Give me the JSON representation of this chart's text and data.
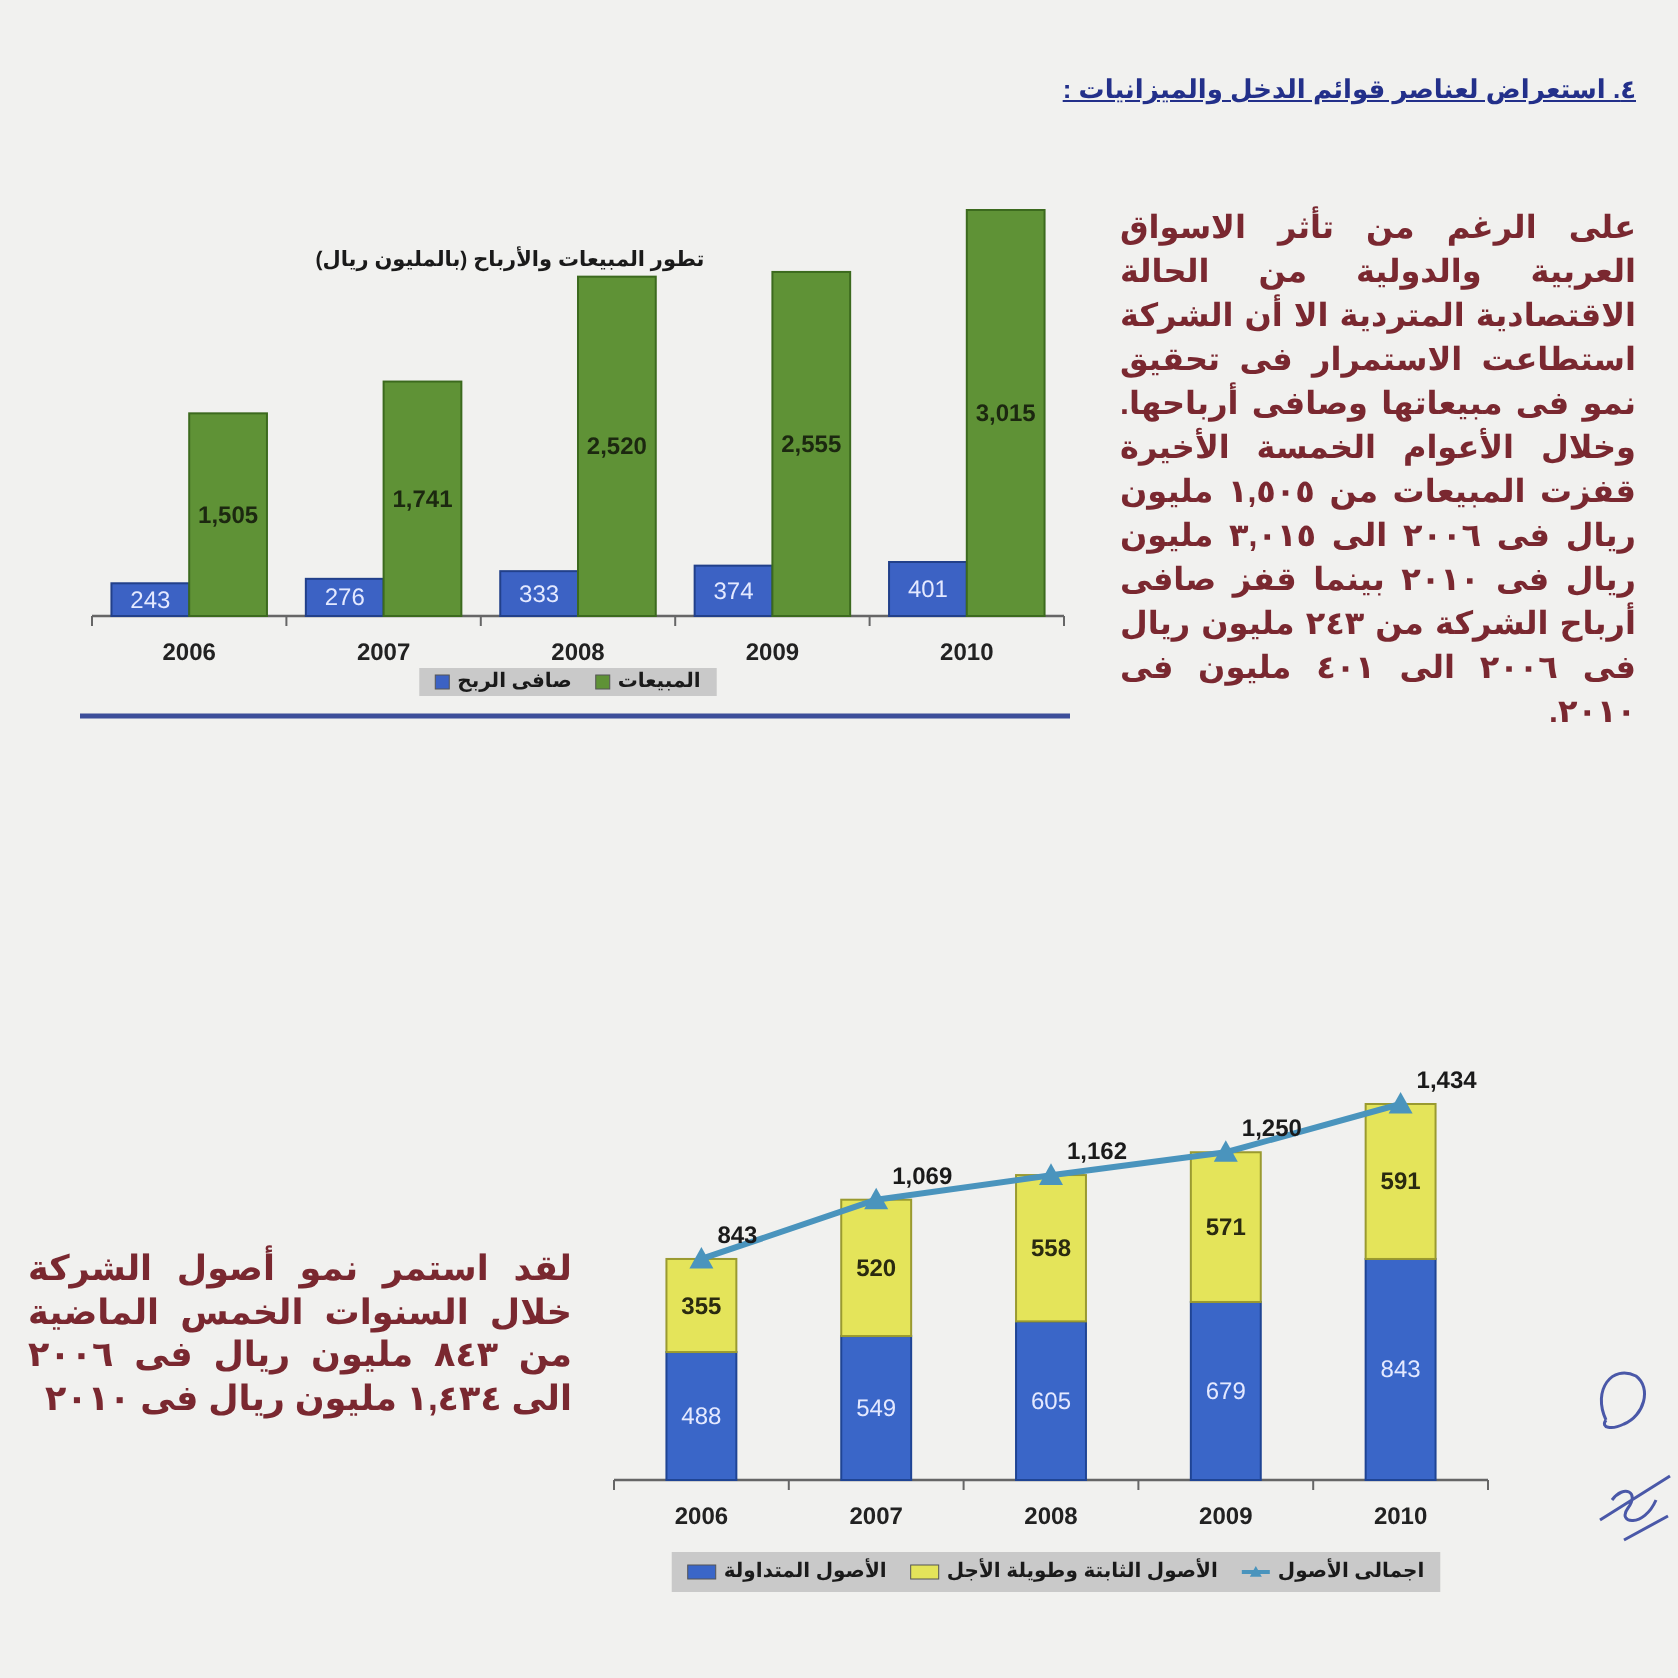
{
  "chart_data": [
    {
      "type": "bar",
      "title": "تطور المبيعات والأرباح (بالمليون ريال)",
      "categories": [
        "2006",
        "2007",
        "2008",
        "2009",
        "2010"
      ],
      "series": [
        {
          "name": "صافى الربح",
          "color": "#3c62c4",
          "values": [
            243,
            276,
            333,
            374,
            401
          ],
          "value_labels": [
            "243",
            "276",
            "333",
            "374",
            "401"
          ]
        },
        {
          "name": "المبيعات",
          "color": "#5f9236",
          "values": [
            1505,
            1741,
            2520,
            2555,
            3015
          ],
          "value_labels": [
            "1,505",
            "1,741",
            "2,520",
            "2,555",
            "3,015"
          ]
        }
      ],
      "legend": "bottom",
      "annotations": [
        "٤. استعراض لعناصر قوائم الدخل والميزانيات :",
        "على الرغم من تأثر الاسواق العربية والدولية من الحالة الاقتصادية المتردية الا أن الشركة استطاعت الاستمرار فى تحقيق نمو فى مبيعاتها وصافى أرباحها. وخلال الأعوام الخمسة الأخيرة قفزت المبيعات من ١,٥٠٥ مليون ريال فى ٢٠٠٦ الى ٣,٠١٥ مليون ريال فى ٢٠١٠ بينما قفز صافى أرباح الشركة من ٢٤٣ مليون ريال فى ٢٠٠٦ الى ٤٠١ مليون فى ٢٠١٠."
      ]
    },
    {
      "type": "bar",
      "stacked": true,
      "categories": [
        "2006",
        "2007",
        "2008",
        "2009",
        "2010"
      ],
      "series": [
        {
          "name": "الأصول المتداولة",
          "color": "#3a66c8",
          "values": [
            488,
            549,
            605,
            679,
            843
          ],
          "value_labels": [
            "488",
            "549",
            "605",
            "679",
            "843"
          ]
        },
        {
          "name": "الأصول الثابتة وطويلة الأجل",
          "color": "#e4e45a",
          "values": [
            355,
            520,
            558,
            571,
            591
          ],
          "value_labels": [
            "355",
            "520",
            "558",
            "571",
            "591"
          ]
        },
        {
          "name": "اجمالى الأصول",
          "type": "line",
          "color": "#4a94bd",
          "marker": "triangle",
          "values": [
            843,
            1069,
            1162,
            1250,
            1434
          ],
          "value_labels": [
            "843",
            "1,069",
            "1,162",
            "1,250",
            "1,434"
          ]
        }
      ],
      "legend": "bottom",
      "annotations": [
        "لقد استمر نمو أصول الشركة خلال السنوات الخمس الماضية من ٨٤٣ مليون ريال فى ٢٠٠٦ الى ١,٤٣٤ مليون ريال فى ٢٠١٠"
      ]
    }
  ]
}
